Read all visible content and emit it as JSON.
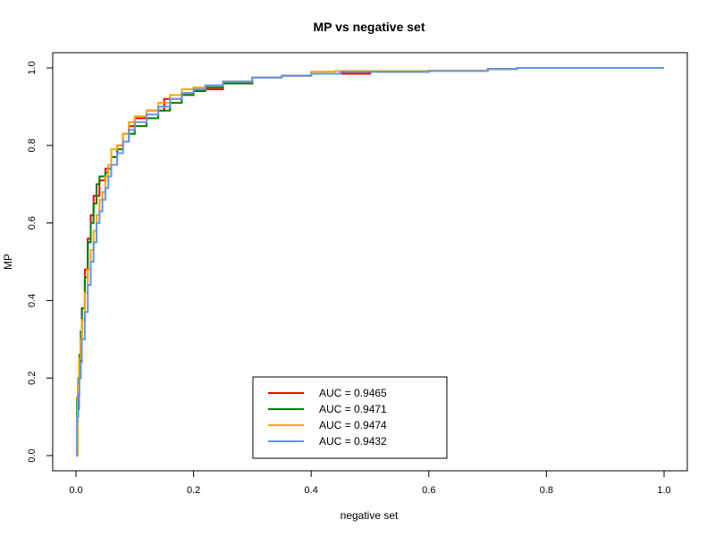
{
  "chart_data": {
    "type": "line",
    "title": "MP vs negative set",
    "xlabel": "negative set",
    "ylabel": "MP",
    "xlim": [
      0,
      1
    ],
    "ylim": [
      0,
      1
    ],
    "x_ticks": [
      "0.0",
      "0.2",
      "0.4",
      "0.6",
      "0.8",
      "1.0"
    ],
    "y_ticks": [
      "0.0",
      "0.2",
      "0.4",
      "0.6",
      "0.8",
      "1.0"
    ],
    "grid": false,
    "legend_position": "bottom-center",
    "series": [
      {
        "name": "AUC = 0.9465",
        "color": "#ff0000",
        "x": [
          0,
          0.003,
          0.005,
          0.008,
          0.01,
          0.015,
          0.02,
          0.025,
          0.03,
          0.04,
          0.05,
          0.06,
          0.07,
          0.08,
          0.09,
          0.1,
          0.12,
          0.15,
          0.18,
          0.2,
          0.25,
          0.3,
          0.35,
          0.4,
          0.5,
          0.6,
          0.7,
          0.75,
          0.8,
          1.0
        ],
        "y": [
          0,
          0.12,
          0.2,
          0.3,
          0.38,
          0.48,
          0.56,
          0.62,
          0.67,
          0.71,
          0.74,
          0.77,
          0.8,
          0.83,
          0.85,
          0.87,
          0.89,
          0.92,
          0.935,
          0.945,
          0.96,
          0.975,
          0.98,
          0.985,
          0.99,
          0.993,
          0.997,
          1.0,
          1.0,
          1.0
        ]
      },
      {
        "name": "AUC = 0.9471",
        "color": "#008000",
        "x": [
          0,
          0.002,
          0.004,
          0.006,
          0.008,
          0.01,
          0.015,
          0.02,
          0.025,
          0.03,
          0.035,
          0.04,
          0.05,
          0.055,
          0.06,
          0.07,
          0.08,
          0.09,
          0.1,
          0.12,
          0.14,
          0.16,
          0.18,
          0.2,
          0.22,
          0.25,
          0.3,
          0.35,
          0.4,
          0.45,
          0.5,
          0.6,
          0.7,
          0.75,
          1.0
        ],
        "y": [
          0,
          0.15,
          0.2,
          0.26,
          0.32,
          0.38,
          0.46,
          0.55,
          0.6,
          0.65,
          0.7,
          0.72,
          0.73,
          0.74,
          0.77,
          0.79,
          0.81,
          0.83,
          0.85,
          0.87,
          0.89,
          0.91,
          0.93,
          0.94,
          0.95,
          0.96,
          0.975,
          0.98,
          0.985,
          0.99,
          0.99,
          0.992,
          0.997,
          1.0,
          1.0
        ]
      },
      {
        "name": "AUC = 0.9474",
        "color": "#ffa500",
        "x": [
          0,
          0.003,
          0.005,
          0.008,
          0.01,
          0.015,
          0.02,
          0.025,
          0.03,
          0.035,
          0.04,
          0.045,
          0.05,
          0.055,
          0.06,
          0.07,
          0.08,
          0.09,
          0.1,
          0.12,
          0.14,
          0.16,
          0.18,
          0.2,
          0.22,
          0.25,
          0.3,
          0.35,
          0.4,
          0.44,
          0.5,
          0.6,
          0.7,
          0.75,
          1.0
        ],
        "y": [
          0,
          0.18,
          0.25,
          0.3,
          0.35,
          0.42,
          0.48,
          0.53,
          0.58,
          0.62,
          0.66,
          0.68,
          0.72,
          0.75,
          0.79,
          0.8,
          0.83,
          0.86,
          0.875,
          0.89,
          0.91,
          0.93,
          0.945,
          0.95,
          0.955,
          0.965,
          0.975,
          0.98,
          0.99,
          0.992,
          0.992,
          0.993,
          0.997,
          1.0,
          1.0
        ]
      },
      {
        "name": "AUC = 0.9432",
        "color": "#6495ed",
        "x": [
          0,
          0.002,
          0.004,
          0.006,
          0.008,
          0.01,
          0.015,
          0.02,
          0.025,
          0.03,
          0.035,
          0.04,
          0.045,
          0.05,
          0.055,
          0.06,
          0.07,
          0.08,
          0.09,
          0.1,
          0.12,
          0.14,
          0.16,
          0.18,
          0.2,
          0.22,
          0.25,
          0.3,
          0.35,
          0.4,
          0.45,
          0.5,
          0.6,
          0.7,
          0.75,
          1.0
        ],
        "y": [
          0,
          0.1,
          0.16,
          0.2,
          0.24,
          0.3,
          0.37,
          0.44,
          0.5,
          0.55,
          0.6,
          0.63,
          0.66,
          0.69,
          0.72,
          0.75,
          0.78,
          0.81,
          0.84,
          0.86,
          0.88,
          0.9,
          0.92,
          0.935,
          0.945,
          0.955,
          0.965,
          0.975,
          0.98,
          0.985,
          0.99,
          0.99,
          0.992,
          0.997,
          1.0,
          1.0
        ]
      }
    ]
  }
}
